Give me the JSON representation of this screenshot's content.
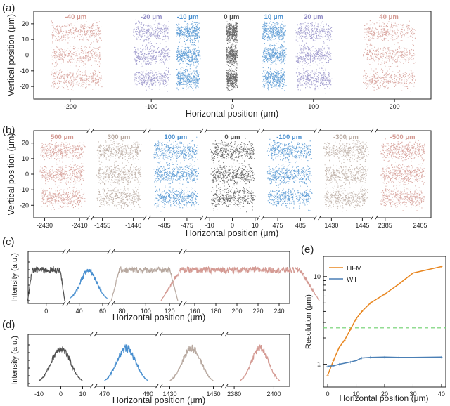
{
  "colors": {
    "gray": "#4f4f4f",
    "blue": "#4a90d0",
    "purple": "#9590c8",
    "pink": "#d49a93",
    "beige": "#b8a9a0",
    "orange": "#e8861f",
    "wt": "#4a7fb5",
    "green_dashed": "#6fd06f"
  },
  "panels": {
    "a": {
      "label": "(a)",
      "xlabel": "Horizontal position (μm)",
      "ylabel": "Vertical position (μm)",
      "xticks": [
        "-200",
        "-100",
        "0",
        "100",
        "200"
      ],
      "yticks": [
        "20",
        "10",
        "0",
        "-10",
        "-20"
      ],
      "groups": [
        {
          "name": "-40 μm",
          "color": "pink"
        },
        {
          "name": "-20 μm",
          "color": "purple"
        },
        {
          "name": "-10 μm",
          "color": "blue"
        },
        {
          "name": "0 μm",
          "color": "gray"
        },
        {
          "name": "10 μm",
          "color": "blue"
        },
        {
          "name": "20 μm",
          "color": "purple"
        },
        {
          "name": "40 μm",
          "color": "pink"
        }
      ]
    },
    "b": {
      "label": "(b)",
      "xlabel": "Horizontal position (μm)",
      "ylabel": "Vertical position (μm)",
      "yticks": [
        "20",
        "10",
        "0",
        "-10",
        "-20"
      ],
      "groups": [
        {
          "name": "500 μm",
          "color": "pink",
          "ticks": [
            "-2430",
            "-2410"
          ]
        },
        {
          "name": "300 μm",
          "color": "beige",
          "ticks": [
            "-1455",
            "-1440"
          ]
        },
        {
          "name": "100 μm",
          "color": "blue",
          "ticks": [
            "-485",
            "-475"
          ]
        },
        {
          "name": "0 μm",
          "color": "gray",
          "ticks": [
            "-10",
            "0",
            "10"
          ]
        },
        {
          "name": "-100 μm",
          "color": "blue",
          "ticks": [
            "475",
            "485"
          ]
        },
        {
          "name": "-300 μm",
          "color": "beige",
          "ticks": [
            "1430",
            "1445"
          ]
        },
        {
          "name": "-500 μm",
          "color": "pink",
          "ticks": [
            "2385",
            "2405"
          ]
        }
      ]
    },
    "c": {
      "label": "(c)",
      "xlabel": "Horizontal position (μm)",
      "ylabel": "Intensity (a.u.)",
      "xticks": [
        "0",
        "40",
        "60",
        "80",
        "100",
        "120",
        "160",
        "180",
        "200",
        "220",
        "240"
      ]
    },
    "d": {
      "label": "(d)",
      "xlabel": "Horizontal position (μm)",
      "ylabel": "Intensity (a.u.)",
      "xticks": [
        "-10",
        "0",
        "10",
        "470",
        "490",
        "1430",
        "1450",
        "2380",
        "2400"
      ]
    },
    "e": {
      "label": "(e)",
      "xlabel": "Horizontal position (μm)",
      "ylabel": "Resolution (μm)",
      "xticks": [
        "0",
        "10",
        "20",
        "30",
        "40"
      ],
      "yticks": [
        "10",
        "1"
      ]
    }
  },
  "chart_data": [
    {
      "type": "scatter",
      "panel": "a",
      "xlabel": "Horizontal position (μm)",
      "ylabel": "Vertical position (μm)",
      "xlim": [
        -245,
        245
      ],
      "ylim": [
        -28,
        28
      ],
      "rows_y": [
        15,
        0,
        -15
      ],
      "series": [
        {
          "name": "-40 μm",
          "x_center": -193,
          "x_half_width": 33,
          "y_sd": 3
        },
        {
          "name": "-20 μm",
          "x_center": -100,
          "x_half_width": 23,
          "y_sd": 3
        },
        {
          "name": "-10 μm",
          "x_center": -55,
          "x_half_width": 15,
          "y_sd": 3
        },
        {
          "name": "0 μm",
          "x_center": -1,
          "x_half_width": 7,
          "y_sd": 3
        },
        {
          "name": "10 μm",
          "x_center": 51,
          "x_half_width": 15,
          "y_sd": 3
        },
        {
          "name": "20 μm",
          "x_center": 100,
          "x_half_width": 23,
          "y_sd": 3
        },
        {
          "name": "40 μm",
          "x_center": 193,
          "x_half_width": 33,
          "y_sd": 3
        }
      ]
    },
    {
      "type": "scatter",
      "panel": "b",
      "xlabel": "Horizontal position (μm)",
      "ylabel": "Vertical position (μm)",
      "ylim": [
        -28,
        28
      ],
      "rows_y": [
        15,
        0,
        -15
      ],
      "series": [
        {
          "name": "500 μm",
          "x_center": -2420,
          "x_half_width": 13
        },
        {
          "name": "300 μm",
          "x_center": -1447,
          "x_half_width": 11
        },
        {
          "name": "100 μm",
          "x_center": -480,
          "x_half_width": 10
        },
        {
          "name": "0 μm",
          "x_center": 0,
          "x_half_width": 10
        },
        {
          "name": "-100 μm",
          "x_center": 480,
          "x_half_width": 10
        },
        {
          "name": "-300 μm",
          "x_center": 1437,
          "x_half_width": 11
        },
        {
          "name": "-500 μm",
          "x_center": 2395,
          "x_half_width": 13
        }
      ]
    },
    {
      "type": "line",
      "panel": "c",
      "xlabel": "Horizontal position (μm)",
      "ylabel": "Intensity (a.u.)",
      "series": [
        {
          "name": "0 μm",
          "color": "gray",
          "center": 0,
          "width": 8,
          "shape": "flat"
        },
        {
          "name": "10 μm",
          "color": "blue",
          "center": 48,
          "width": 16,
          "shape": "peak"
        },
        {
          "name": "20 μm",
          "color": "beige",
          "center": 99,
          "width": 28,
          "shape": "flat"
        },
        {
          "name": "40 μm",
          "color": "pink",
          "center": 203,
          "width": 75,
          "shape": "flat"
        }
      ]
    },
    {
      "type": "line",
      "panel": "d",
      "xlabel": "Horizontal position (μm)",
      "ylabel": "Intensity (a.u.)",
      "series": [
        {
          "name": "0 μm",
          "color": "gray",
          "center": 0,
          "width": 10
        },
        {
          "name": "100 μm",
          "color": "blue",
          "center": 480,
          "width": 10
        },
        {
          "name": "300 μm",
          "color": "beige",
          "center": 1440,
          "width": 10
        },
        {
          "name": "500 μm",
          "color": "pink",
          "center": 2393,
          "width": 10
        }
      ]
    },
    {
      "type": "line",
      "panel": "e",
      "xlabel": "Horizontal position (μm)",
      "ylabel": "Resolution (μm)",
      "xlim": [
        -1.5,
        41.5
      ],
      "ylim": [
        0.55,
        17
      ],
      "yscale": "log",
      "legend": "top-left",
      "series": [
        {
          "name": "HFM",
          "color": "orange",
          "x": [
            0,
            2,
            4,
            6,
            8,
            10,
            12,
            15,
            20,
            25,
            30,
            40
          ],
          "y": [
            0.75,
            1.1,
            1.55,
            1.9,
            2.5,
            3.3,
            4.0,
            5.0,
            6.3,
            8.2,
            11.0,
            13.0
          ]
        },
        {
          "name": "WT",
          "color": "wt",
          "x": [
            0,
            2,
            4,
            6,
            8,
            10,
            12,
            15,
            20,
            25,
            30,
            40
          ],
          "y": [
            0.95,
            0.96,
            1.0,
            1.03,
            1.06,
            1.1,
            1.18,
            1.2,
            1.21,
            1.2,
            1.2,
            1.21
          ]
        }
      ],
      "reference_line": {
        "y": 2.6,
        "style": "dashed",
        "color": "green_dashed"
      }
    }
  ]
}
